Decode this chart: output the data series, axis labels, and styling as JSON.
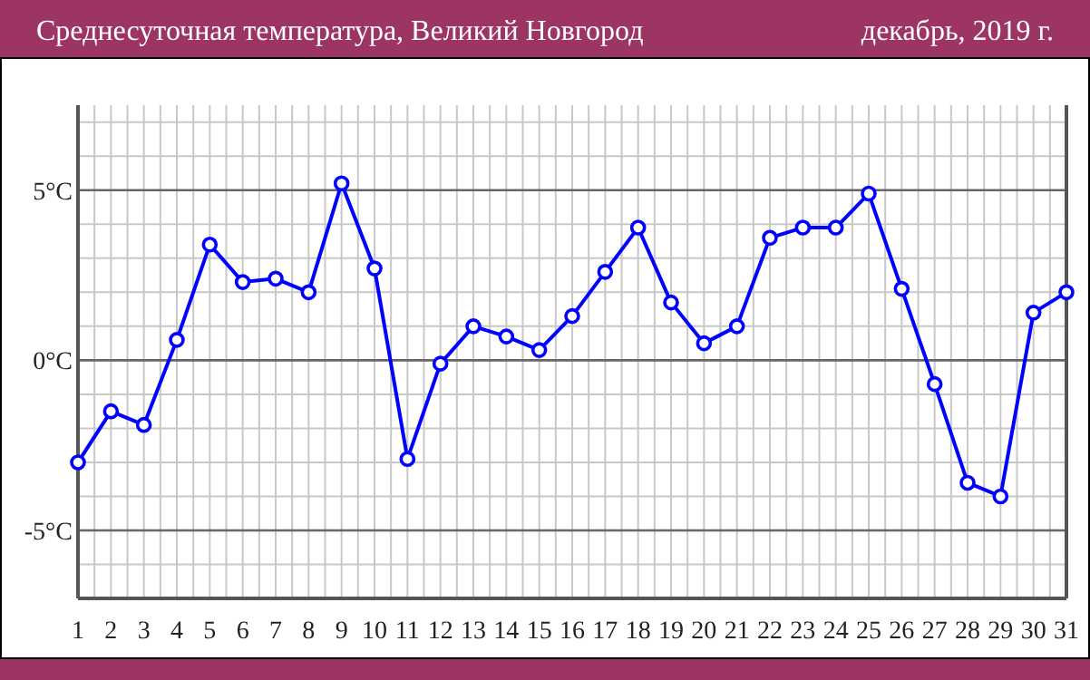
{
  "chart_data": {
    "type": "line",
    "title": "Среднесуточная температура, Великий Новгород",
    "subtitle": "декабрь, 2019 г.",
    "x": [
      1,
      2,
      3,
      4,
      5,
      6,
      7,
      8,
      9,
      10,
      11,
      12,
      13,
      14,
      15,
      16,
      17,
      18,
      19,
      20,
      21,
      22,
      23,
      24,
      25,
      26,
      27,
      28,
      29,
      30,
      31
    ],
    "series": [
      {
        "color": "#0000ff",
        "values": [
          -3.0,
          -1.5,
          -1.9,
          0.6,
          3.4,
          2.3,
          2.4,
          2.0,
          5.2,
          2.7,
          -2.9,
          -0.1,
          1.0,
          0.7,
          0.3,
          1.3,
          2.6,
          3.9,
          1.7,
          0.5,
          1.0,
          3.6,
          3.9,
          3.9,
          4.9,
          2.1,
          -0.7,
          -3.6,
          -4.0,
          1.4,
          2.0
        ]
      }
    ],
    "xlim": [
      1,
      31
    ],
    "xticks": [
      1,
      2,
      3,
      4,
      5,
      6,
      7,
      8,
      9,
      10,
      11,
      12,
      13,
      14,
      15,
      16,
      17,
      18,
      19,
      20,
      21,
      22,
      23,
      24,
      25,
      26,
      27,
      28,
      29,
      30,
      31,
      {
        "value": 1.5,
        "label": null
      },
      {
        "value": 2.5,
        "label": null
      },
      {
        "value": 3.5,
        "label": null
      },
      {
        "value": 4.5,
        "label": null
      },
      {
        "value": 5.5,
        "label": null
      },
      {
        "value": 6.5,
        "label": null
      },
      {
        "value": 7.5,
        "label": null
      },
      {
        "value": 8.5,
        "label": null
      },
      {
        "value": 9.5,
        "label": null
      },
      {
        "value": 10.5,
        "label": null
      },
      {
        "value": 11.5,
        "label": null
      },
      {
        "value": 12.5,
        "label": null
      },
      {
        "value": 13.5,
        "label": null
      },
      {
        "value": 14.5,
        "label": null
      },
      {
        "value": 15.5,
        "label": null
      },
      {
        "value": 16.5,
        "label": null
      },
      {
        "value": 17.5,
        "label": null
      },
      {
        "value": 18.5,
        "label": null
      },
      {
        "value": 19.5,
        "label": null
      },
      {
        "value": 20.5,
        "label": null
      },
      {
        "value": 21.5,
        "label": null
      },
      {
        "value": 22.5,
        "label": null
      },
      {
        "value": 23.5,
        "label": null
      },
      {
        "value": 24.5,
        "label": null
      },
      {
        "value": 25.5,
        "label": null
      },
      {
        "value": 26.5,
        "label": null
      },
      {
        "value": 27.5,
        "label": null
      },
      {
        "value": 28.5,
        "label": null
      },
      {
        "value": 29.5,
        "label": null
      },
      {
        "value": 30.5,
        "label": null
      }
    ],
    "ylim": [
      -7,
      7.5
    ],
    "yticks": [
      {
        "value": -5,
        "label": "-5°C"
      },
      {
        "value": 0,
        "label": "0°C"
      },
      {
        "value": 5,
        "label": "5°C"
      },
      {
        "value": -7,
        "label": null
      },
      {
        "value": -6,
        "label": null
      },
      {
        "value": -4,
        "label": null
      },
      {
        "value": -3,
        "label": null
      },
      {
        "value": -2,
        "label": null
      },
      {
        "value": -1,
        "label": null
      },
      {
        "value": 1,
        "label": null
      },
      {
        "value": 2,
        "label": null
      },
      {
        "value": 3,
        "label": null
      },
      {
        "value": 4,
        "label": null
      },
      {
        "value": 6,
        "label": null
      },
      {
        "value": 7,
        "label": null
      }
    ],
    "grid": true,
    "marker": "circle",
    "line_style": "solid"
  }
}
